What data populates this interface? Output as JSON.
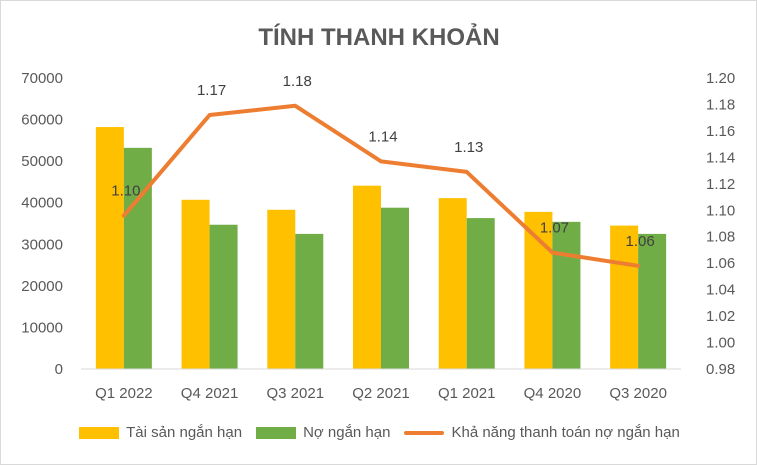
{
  "chart_data": {
    "type": "bar",
    "title": "TÍNH THANH KHOẢN",
    "categories": [
      "Q1 2022",
      "Q4 2021",
      "Q3 2021",
      "Q2 2021",
      "Q1 2021",
      "Q4 2020",
      "Q3 2020"
    ],
    "series": [
      {
        "name": "Tài sản ngắn hạn",
        "type": "bar",
        "axis": "left",
        "color": "#FFC000",
        "values": [
          58200,
          40700,
          38300,
          44100,
          41100,
          37800,
          34500
        ]
      },
      {
        "name": "Nợ ngắn hạn",
        "type": "bar",
        "axis": "left",
        "color": "#70AD47",
        "values": [
          53200,
          34700,
          32500,
          38800,
          36300,
          35400,
          32500
        ]
      },
      {
        "name": "Khả năng thanh toán nợ ngắn hạn",
        "type": "line",
        "axis": "right",
        "color": "#ED7D31",
        "values": [
          1.096,
          1.172,
          1.179,
          1.137,
          1.129,
          1.068,
          1.058
        ],
        "labels": [
          "1.10",
          "1.17",
          "1.18",
          "1.14",
          "1.13",
          "1.07",
          "1.06"
        ]
      }
    ],
    "y_left": {
      "range": [
        0,
        70000
      ],
      "ticks": [
        "0",
        "10000",
        "20000",
        "30000",
        "40000",
        "50000",
        "60000",
        "70000"
      ]
    },
    "y_right": {
      "range": [
        0.98,
        1.2
      ],
      "ticks": [
        "0.98",
        "1.00",
        "1.02",
        "1.04",
        "1.06",
        "1.08",
        "1.10",
        "1.12",
        "1.14",
        "1.16",
        "1.18",
        "1.20"
      ]
    },
    "grid": false,
    "legend": "bottom"
  }
}
